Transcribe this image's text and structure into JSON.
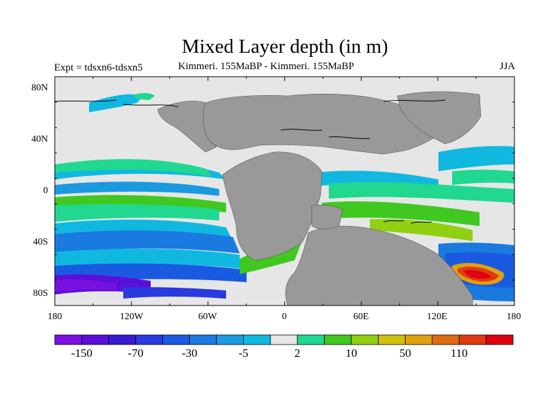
{
  "title": "Mixed Layer depth (in m)",
  "subtitle_left": "Expt = tdsxn6-tdsxn5",
  "subtitle_center": "Kimmeri. 155MaBP - Kimmeri. 155MaBP",
  "subtitle_right": "JJA",
  "lat_labels": [
    "80N",
    "40N",
    "0",
    "40S",
    "80S"
  ],
  "lon_labels": [
    "180",
    "120W",
    "60W",
    "0",
    "60E",
    "120E",
    "180"
  ],
  "colorbar": {
    "colors": [
      "#7a10e0",
      "#5a10d8",
      "#3a1ad0",
      "#2a3ae0",
      "#1a5ae0",
      "#1a7ae0",
      "#1a9ae0",
      "#10b8e0",
      "#e6e6e6",
      "#20d890",
      "#40c820",
      "#90d010",
      "#d0c010",
      "#e0a010",
      "#e06a10",
      "#e03a10",
      "#e00010"
    ],
    "labels": [
      "-150",
      "-70",
      "-30",
      "-5",
      "2",
      "10",
      "50",
      "110"
    ],
    "label_positions": [
      1,
      3,
      5,
      7,
      9,
      11,
      13,
      15
    ]
  },
  "colors": {
    "ocean": "#e6e6e6",
    "land": "#999999"
  }
}
